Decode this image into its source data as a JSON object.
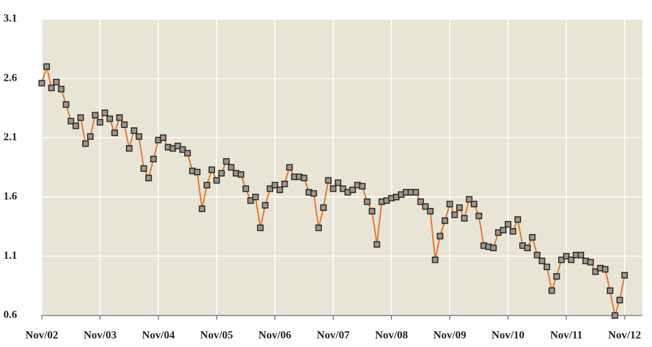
{
  "chart_data": {
    "type": "line",
    "categories": [
      "Nov/02",
      null,
      null,
      null,
      null,
      null,
      null,
      null,
      null,
      null,
      null,
      null,
      "Nov/03",
      null,
      null,
      null,
      null,
      null,
      null,
      null,
      null,
      null,
      null,
      null,
      "Nov/04",
      null,
      null,
      null,
      null,
      null,
      null,
      null,
      null,
      null,
      null,
      null,
      "Nov/05",
      null,
      null,
      null,
      null,
      null,
      null,
      null,
      null,
      null,
      null,
      null,
      "Nov/06",
      null,
      null,
      null,
      null,
      null,
      null,
      null,
      null,
      null,
      null,
      null,
      "Nov/07",
      null,
      null,
      null,
      null,
      null,
      null,
      null,
      null,
      null,
      null,
      null,
      "Nov/08",
      null,
      null,
      null,
      null,
      null,
      null,
      null,
      null,
      null,
      null,
      null,
      "Nov/09",
      null,
      null,
      null,
      null,
      null,
      null,
      null,
      null,
      null,
      null,
      null,
      "Nov/10",
      null,
      null,
      null,
      null,
      null,
      null,
      null,
      null,
      null,
      null,
      null,
      "Nov/11",
      null,
      null,
      null,
      null,
      null,
      null,
      null,
      null,
      null,
      null,
      null,
      "Nov/12"
    ],
    "values": [
      2.56,
      2.7,
      2.52,
      2.57,
      2.51,
      2.38,
      2.24,
      2.2,
      2.27,
      2.05,
      2.11,
      2.29,
      2.23,
      2.31,
      2.26,
      2.14,
      2.27,
      2.21,
      2.01,
      2.16,
      2.11,
      1.84,
      1.76,
      1.92,
      2.08,
      2.1,
      2.02,
      2.01,
      2.03,
      2.0,
      1.97,
      1.82,
      1.81,
      1.5,
      1.7,
      1.83,
      1.74,
      1.8,
      1.9,
      1.85,
      1.8,
      1.79,
      1.67,
      1.57,
      1.6,
      1.34,
      1.53,
      1.67,
      1.7,
      1.66,
      1.71,
      1.85,
      1.77,
      1.77,
      1.76,
      1.64,
      1.63,
      1.34,
      1.51,
      1.74,
      1.67,
      1.72,
      1.67,
      1.64,
      1.66,
      1.7,
      1.69,
      1.56,
      1.48,
      1.2,
      1.56,
      1.57,
      1.59,
      1.6,
      1.62,
      1.64,
      1.64,
      1.64,
      1.56,
      1.52,
      1.48,
      1.07,
      1.27,
      1.4,
      1.54,
      1.45,
      1.51,
      1.42,
      1.58,
      1.54,
      1.44,
      1.19,
      1.18,
      1.17,
      1.3,
      1.32,
      1.37,
      1.31,
      1.41,
      1.19,
      1.17,
      1.26,
      1.11,
      1.06,
      1.01,
      0.81,
      0.93,
      1.07,
      1.1,
      1.07,
      1.11,
      1.11,
      1.06,
      1.05,
      0.97,
      1.0,
      0.99,
      0.81,
      0.6,
      0.73,
      0.94
    ],
    "color": "#e2772c",
    "marker_color": "#9a9690",
    "ylim": [
      0.6,
      3.1
    ],
    "yticks": [
      0.6,
      1.1,
      1.6,
      2.1,
      2.6,
      3.1
    ],
    "grid": true
  }
}
